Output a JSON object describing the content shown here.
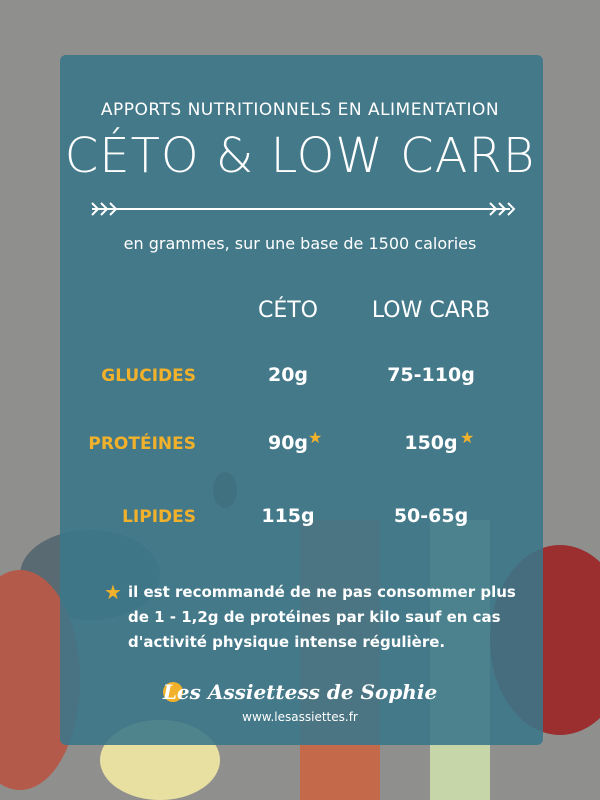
{
  "header": {
    "subtitle": "APPORTS NUTRITIONNELS EN ALIMENTATION",
    "title": "CÉTO & LOW CARB",
    "note": "en grammes, sur une base de 1500 calories"
  },
  "table": {
    "columns": [
      "CÉTO",
      "LOW CARB"
    ],
    "rows": [
      [
        "GLUCIDES",
        "20g",
        "75-110g"
      ],
      [
        "PROTÉINES",
        "90g",
        "150g"
      ],
      [
        "LIPIDES",
        "115g",
        "50-65g"
      ]
    ]
  },
  "footnote": "il est recommandé de ne pas consommer plus de 1 - 1,2g de protéines par kilo sauf en cas d'activité physique intense régulière.",
  "brand": {
    "name": "Les Assiettess de Sophie",
    "url": "www.lesassiettes.fr"
  }
}
